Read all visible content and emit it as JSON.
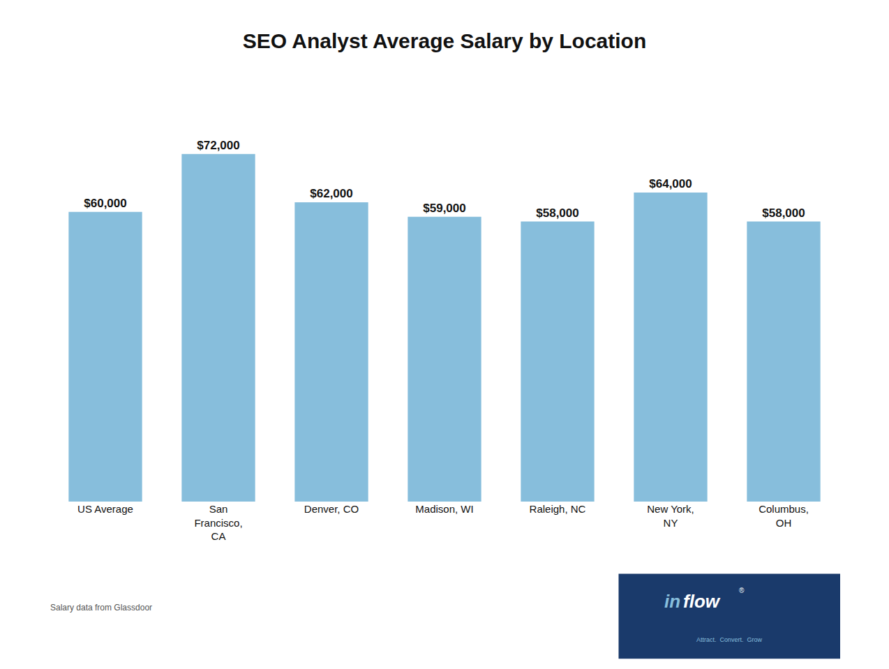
{
  "chart_data": {
    "type": "bar",
    "title": "SEO Analyst Average Salary by Location",
    "categories": [
      "US Average",
      "San\nFrancisco,\nCA",
      "Denver, CO",
      "Madison, WI",
      "Raleigh, NC",
      "New York,\nNY",
      "Columbus,\nOH"
    ],
    "values": [
      60000,
      72000,
      62000,
      59000,
      58000,
      64000,
      58000
    ],
    "value_labels": [
      "$60,000",
      "$72,000",
      "$62,000",
      "$59,000",
      "$58,000",
      "$64,000",
      "$58,000"
    ],
    "data_labels": true,
    "color": "#87BEDC",
    "ylim": [
      0,
      88000
    ],
    "grid": false,
    "tick_labels": "x",
    "annotations": [
      {
        "text": "Salary data from Glassdoor"
      },
      {
        "text": "in",
        "color": "#87BEDC",
        "bgcolor": "#1a3a6b"
      },
      {
        "text": "flow",
        "color": "#ffffff"
      },
      {
        "text": "®",
        "color": "#ffffff"
      },
      {
        "text": "Attract.  Convert.  Grow",
        "color": "#87BEDC"
      }
    ]
  }
}
